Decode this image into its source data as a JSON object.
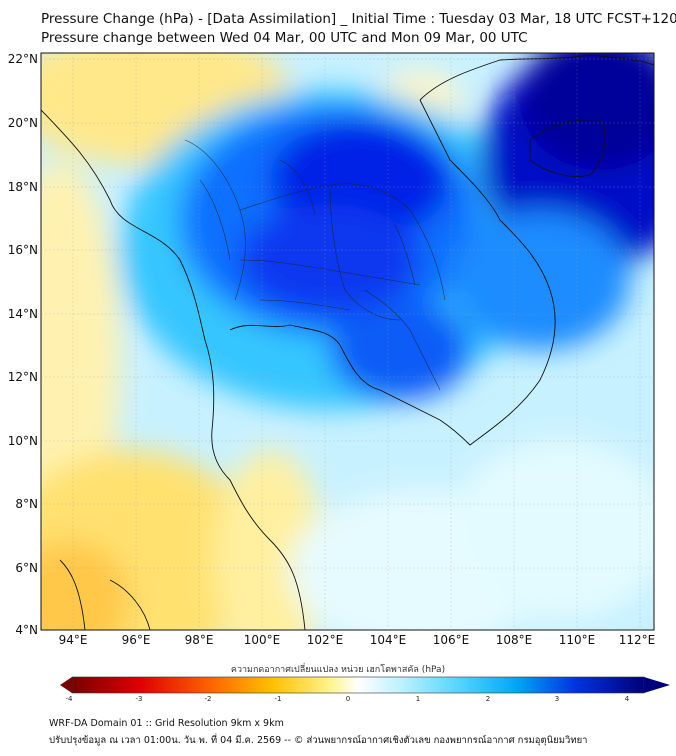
{
  "header": {
    "title_line1": "Pressure Change (hPa) - [Data Assimilation] _ Initial Time : Tuesday 03 Mar, 18 UTC FCST+120",
    "title_line2": "Pressure change between Wed 04 Mar, 00 UTC and Mon 09 Mar, 00 UTC"
  },
  "map": {
    "lat_labels": [
      "22°N",
      "20°N",
      "18°N",
      "16°N",
      "14°N",
      "12°N",
      "10°N",
      "8°N",
      "6°N",
      "4°N"
    ],
    "lon_labels": [
      "94°E",
      "96°E",
      "98°E",
      "100°E",
      "102°E",
      "104°E",
      "106°E",
      "108°E",
      "110°E",
      "112°E"
    ]
  },
  "colorbar": {
    "label": "ความกดอากาศเปลี่ยนแปลง หน่วย เฮกโตพาสคัล (hPa)",
    "ticks": [
      "-4",
      "-3",
      "-2",
      "-1",
      "0",
      "1",
      "2",
      "3",
      "4"
    ],
    "colors": {
      "negative_max": "#7a0000",
      "negative_mid": "#ff3a00",
      "negative_low": "#ffe14d",
      "zero": "#ffffff",
      "positive_low": "#9ee8ff",
      "positive_mid": "#00b4ff",
      "positive_max": "#00007a"
    }
  },
  "footer": {
    "line1": "WRF-DA Domain 01 :: Grid Resolution 9km x 9km",
    "line2": "ปรับปรุงข้อมูล ณ เวลา 01:00น. วัน พ. ที่ 04 มี.ค. 2569 -- © ส่วนพยากรณ์อากาศเชิงตัวเลข กองพยากรณ์อากาศ กรมอุตุนิยมวิทยา"
  }
}
